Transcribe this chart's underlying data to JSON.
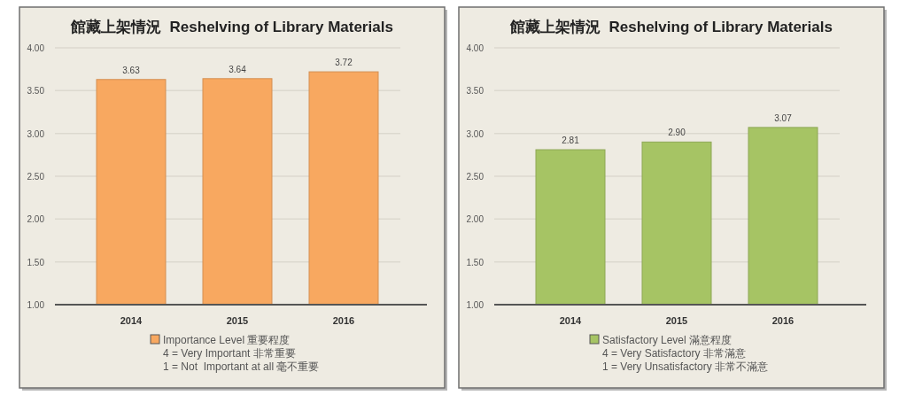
{
  "chart_data": [
    {
      "type": "bar",
      "title": "館藏上架情況  Reshelving of Library Materials",
      "categories": [
        "2014",
        "2015",
        "2016"
      ],
      "series": [
        {
          "name": "Importance Level 重要程度",
          "color": "#f8a860",
          "values": [
            3.63,
            3.64,
            3.72
          ],
          "value_labels": [
            "3.63",
            "3.64",
            "3.72"
          ]
        }
      ],
      "ylim": [
        1,
        4
      ],
      "yticks": [
        {
          "value": 1,
          "label": "1.00"
        },
        {
          "value": 1.5,
          "label": "1.50"
        },
        {
          "value": 2,
          "label": "2.00"
        },
        {
          "value": 2.5,
          "label": "2.50"
        },
        {
          "value": 3,
          "label": "3.00"
        },
        {
          "value": 3.5,
          "label": "3.50"
        },
        {
          "value": 4,
          "label": "4.00"
        }
      ],
      "grid": "y",
      "legend": "bottom",
      "annotations": [
        "4 = Very Important 非常重要",
        "1 = Not  Important at all 毫不重要"
      ]
    },
    {
      "type": "bar",
      "title": "館藏上架情況  Reshelving of Library Materials",
      "categories": [
        "2014",
        "2015",
        "2016"
      ],
      "series": [
        {
          "name": "Satisfactory Level 滿意程度",
          "color": "#a6c464",
          "values": [
            2.81,
            2.9,
            3.07
          ],
          "value_labels": [
            "2.81",
            "2.90",
            "3.07"
          ]
        }
      ],
      "ylim": [
        1,
        4
      ],
      "yticks": [
        {
          "value": 1,
          "label": "1.00"
        },
        {
          "value": 1.5,
          "label": "1.50"
        },
        {
          "value": 2,
          "label": "2.00"
        },
        {
          "value": 2.5,
          "label": "2.50"
        },
        {
          "value": 3,
          "label": "3.00"
        },
        {
          "value": 3.5,
          "label": "3.50"
        },
        {
          "value": 4,
          "label": "4.00"
        }
      ],
      "grid": "y",
      "legend": "bottom",
      "annotations": [
        "4 = Very Satisfactory 非常滿意",
        "1 = Very Unsatisfactory 非常不滿意"
      ]
    }
  ]
}
